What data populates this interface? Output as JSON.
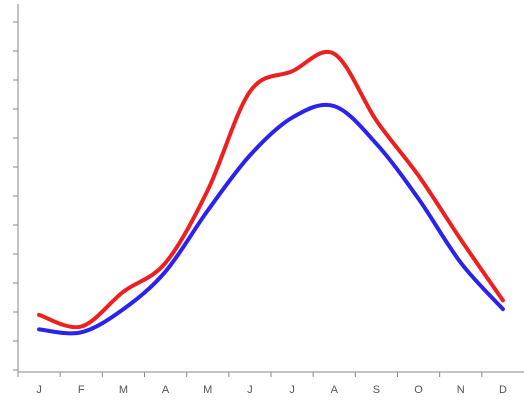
{
  "chart_data": {
    "type": "line",
    "categories": [
      "J",
      "F",
      "M",
      "A",
      "M",
      "J",
      "J",
      "A",
      "S",
      "O",
      "N",
      "D"
    ],
    "series": [
      {
        "color": "#ee1f1f",
        "values": [
          1.9,
          1.5,
          2.7,
          3.7,
          6.2,
          9.6,
          10.3,
          10.9,
          8.6,
          6.7,
          4.5,
          2.4
        ]
      },
      {
        "color": "#2a22ee",
        "values": [
          1.4,
          1.3,
          2.1,
          3.4,
          5.5,
          7.4,
          8.7,
          9.1,
          7.8,
          5.9,
          3.7,
          2.1
        ]
      }
    ],
    "ylim": [
      0,
      12
    ],
    "yticks": [
      0,
      1,
      2,
      3,
      4,
      5,
      6,
      7,
      8,
      9,
      10,
      11,
      12
    ]
  }
}
